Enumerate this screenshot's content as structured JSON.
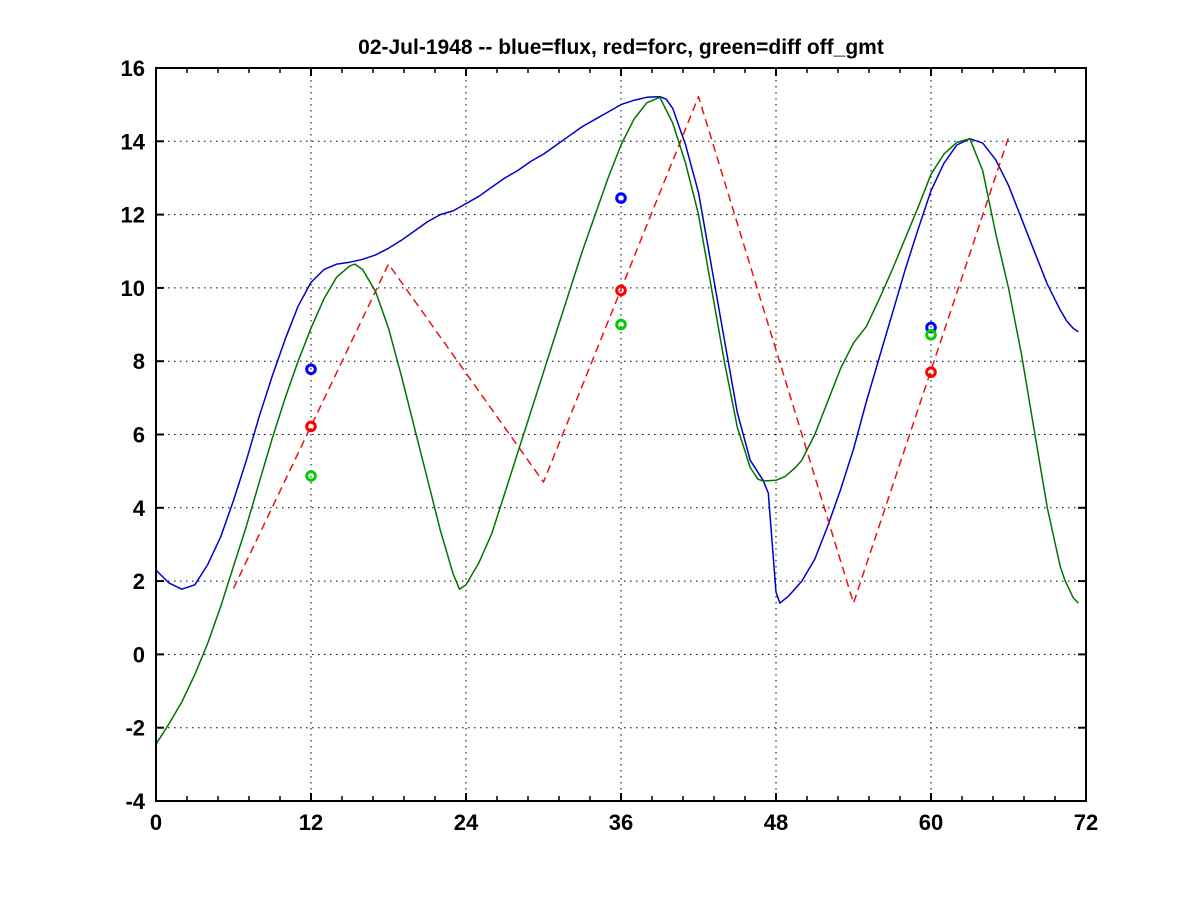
{
  "chart_data": {
    "type": "line",
    "title": "02-Jul-1948 -- blue=flux, red=forc, green=diff off_gmt",
    "xlabel": "",
    "ylabel": "",
    "x_range": [
      0,
      72
    ],
    "y_range": [
      -4,
      16
    ],
    "x_ticks": [
      0,
      12,
      24,
      36,
      48,
      60,
      72
    ],
    "y_ticks": [
      -4,
      -2,
      0,
      2,
      4,
      6,
      8,
      10,
      12,
      14,
      16
    ],
    "x_minor_step": 2.4,
    "grid": "dotted",
    "legend_position": "in-title",
    "series": [
      {
        "name": "flux",
        "color": "#0000cc",
        "style": "solid",
        "points": [
          [
            0,
            2.3
          ],
          [
            1,
            1.95
          ],
          [
            2,
            1.78
          ],
          [
            3,
            1.9
          ],
          [
            4,
            2.45
          ],
          [
            5,
            3.2
          ],
          [
            6,
            4.2
          ],
          [
            7,
            5.3
          ],
          [
            8,
            6.5
          ],
          [
            9,
            7.6
          ],
          [
            10,
            8.6
          ],
          [
            11,
            9.5
          ],
          [
            12,
            10.15
          ],
          [
            13,
            10.5
          ],
          [
            14,
            10.65
          ],
          [
            15,
            10.7
          ],
          [
            16,
            10.78
          ],
          [
            17,
            10.9
          ],
          [
            18,
            11.08
          ],
          [
            19,
            11.3
          ],
          [
            20,
            11.55
          ],
          [
            21,
            11.8
          ],
          [
            22,
            12.0
          ],
          [
            23,
            12.1
          ],
          [
            24,
            12.3
          ],
          [
            25,
            12.5
          ],
          [
            26,
            12.75
          ],
          [
            27,
            13.0
          ],
          [
            28,
            13.2
          ],
          [
            29,
            13.45
          ],
          [
            30,
            13.65
          ],
          [
            31,
            13.9
          ],
          [
            32,
            14.15
          ],
          [
            33,
            14.4
          ],
          [
            34,
            14.6
          ],
          [
            35,
            14.8
          ],
          [
            36,
            15.0
          ],
          [
            37,
            15.12
          ],
          [
            38,
            15.2
          ],
          [
            39,
            15.22
          ],
          [
            39.5,
            15.15
          ],
          [
            40,
            14.9
          ],
          [
            41,
            13.9
          ],
          [
            42,
            12.6
          ],
          [
            43,
            10.6
          ],
          [
            44,
            8.6
          ],
          [
            45,
            6.6
          ],
          [
            46,
            5.3
          ],
          [
            47,
            4.75
          ],
          [
            47.4,
            4.4
          ],
          [
            48,
            1.7
          ],
          [
            48.3,
            1.4
          ],
          [
            49,
            1.6
          ],
          [
            50,
            2.0
          ],
          [
            51,
            2.6
          ],
          [
            52,
            3.5
          ],
          [
            53,
            4.5
          ],
          [
            54,
            5.6
          ],
          [
            55,
            6.9
          ],
          [
            56,
            8.1
          ],
          [
            57,
            9.3
          ],
          [
            58,
            10.5
          ],
          [
            59,
            11.6
          ],
          [
            60,
            12.65
          ],
          [
            61,
            13.4
          ],
          [
            62,
            13.9
          ],
          [
            63,
            14.07
          ],
          [
            64,
            13.95
          ],
          [
            65,
            13.5
          ],
          [
            66,
            12.8
          ],
          [
            67,
            11.9
          ],
          [
            68,
            11.0
          ],
          [
            69,
            10.1
          ],
          [
            70,
            9.4
          ],
          [
            70.5,
            9.1
          ],
          [
            71,
            8.9
          ],
          [
            71.4,
            8.8
          ]
        ]
      },
      {
        "name": "forc",
        "color": "#ee1111",
        "style": "dashed",
        "points": [
          [
            6,
            1.8
          ],
          [
            18,
            10.65
          ],
          [
            30,
            4.7
          ],
          [
            42,
            15.22
          ],
          [
            54,
            1.4
          ],
          [
            66,
            14.1
          ]
        ]
      },
      {
        "name": "diff",
        "color": "#007400",
        "style": "solid",
        "points": [
          [
            0,
            -2.45
          ],
          [
            1,
            -1.9
          ],
          [
            2,
            -1.3
          ],
          [
            3,
            -0.55
          ],
          [
            4,
            0.3
          ],
          [
            5,
            1.3
          ],
          [
            6,
            2.4
          ],
          [
            7,
            3.5
          ],
          [
            8,
            4.7
          ],
          [
            9,
            5.9
          ],
          [
            10,
            7.0
          ],
          [
            11,
            8.0
          ],
          [
            12,
            8.9
          ],
          [
            13,
            9.7
          ],
          [
            14,
            10.3
          ],
          [
            15,
            10.6
          ],
          [
            15.4,
            10.65
          ],
          [
            16,
            10.5
          ],
          [
            17,
            9.9
          ],
          [
            18,
            8.9
          ],
          [
            19,
            7.6
          ],
          [
            20,
            6.2
          ],
          [
            21,
            4.8
          ],
          [
            22,
            3.4
          ],
          [
            23,
            2.2
          ],
          [
            23.5,
            1.78
          ],
          [
            24,
            1.9
          ],
          [
            25,
            2.5
          ],
          [
            26,
            3.3
          ],
          [
            27,
            4.4
          ],
          [
            28,
            5.5
          ],
          [
            29,
            6.6
          ],
          [
            30,
            7.7
          ],
          [
            31,
            8.8
          ],
          [
            32,
            9.9
          ],
          [
            33,
            11.0
          ],
          [
            34,
            12.0
          ],
          [
            35,
            13.0
          ],
          [
            36,
            13.9
          ],
          [
            37,
            14.6
          ],
          [
            38,
            15.05
          ],
          [
            39,
            15.2
          ],
          [
            40,
            14.5
          ],
          [
            41,
            13.4
          ],
          [
            42,
            12.0
          ],
          [
            43,
            10.0
          ],
          [
            44,
            8.0
          ],
          [
            45,
            6.2
          ],
          [
            46,
            5.1
          ],
          [
            46.6,
            4.78
          ],
          [
            47,
            4.73
          ],
          [
            48,
            4.75
          ],
          [
            48.7,
            4.85
          ],
          [
            49.5,
            5.1
          ],
          [
            50,
            5.3
          ],
          [
            51,
            6.0
          ],
          [
            52,
            6.9
          ],
          [
            53,
            7.8
          ],
          [
            54,
            8.5
          ],
          [
            55,
            8.95
          ],
          [
            56,
            9.7
          ],
          [
            57,
            10.5
          ],
          [
            58,
            11.35
          ],
          [
            59,
            12.2
          ],
          [
            60,
            13.1
          ],
          [
            61,
            13.65
          ],
          [
            62,
            13.97
          ],
          [
            63,
            14.07
          ],
          [
            64,
            13.2
          ],
          [
            65,
            11.5
          ],
          [
            66,
            10.0
          ],
          [
            67,
            8.2
          ],
          [
            68,
            6.1
          ],
          [
            69,
            4.0
          ],
          [
            70,
            2.4
          ],
          [
            70.4,
            2.0
          ],
          [
            71,
            1.55
          ],
          [
            71.4,
            1.4
          ]
        ]
      }
    ],
    "markers": [
      {
        "name": "flux-obs",
        "shape": "circle",
        "color": "#0000ff",
        "points": [
          [
            12,
            7.78
          ],
          [
            36,
            12.45
          ],
          [
            60,
            8.92
          ]
        ]
      },
      {
        "name": "forc-obs",
        "shape": "circle",
        "color": "#ff0000",
        "points": [
          [
            12,
            6.22
          ],
          [
            36,
            9.93
          ],
          [
            60,
            7.7
          ]
        ]
      },
      {
        "name": "diff-obs",
        "shape": "circle",
        "color": "#00d000",
        "points": [
          [
            12,
            4.87
          ],
          [
            36,
            9.0
          ],
          [
            60,
            8.72
          ]
        ]
      }
    ]
  }
}
